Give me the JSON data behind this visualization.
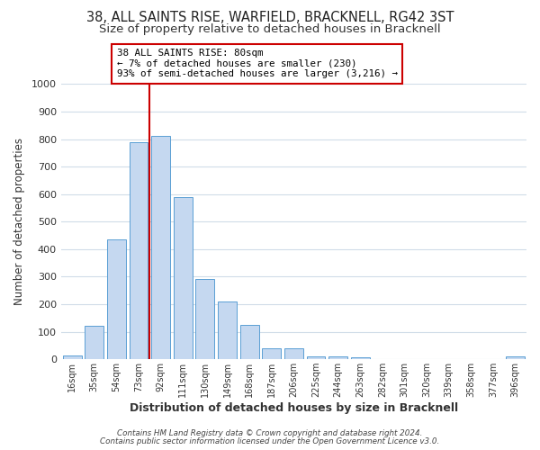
{
  "title": "38, ALL SAINTS RISE, WARFIELD, BRACKNELL, RG42 3ST",
  "subtitle": "Size of property relative to detached houses in Bracknell",
  "xlabel": "Distribution of detached houses by size in Bracknell",
  "ylabel": "Number of detached properties",
  "bar_labels": [
    "16sqm",
    "35sqm",
    "54sqm",
    "73sqm",
    "92sqm",
    "111sqm",
    "130sqm",
    "149sqm",
    "168sqm",
    "187sqm",
    "206sqm",
    "225sqm",
    "244sqm",
    "263sqm",
    "282sqm",
    "301sqm",
    "320sqm",
    "339sqm",
    "358sqm",
    "377sqm",
    "396sqm"
  ],
  "bar_values": [
    15,
    120,
    435,
    790,
    810,
    590,
    290,
    210,
    125,
    40,
    40,
    10,
    10,
    8,
    0,
    0,
    0,
    0,
    0,
    0,
    10
  ],
  "bar_color": "#c5d8f0",
  "bar_edge_color": "#5a9fd4",
  "vline_color": "#cc0000",
  "ylim": [
    0,
    1000
  ],
  "yticks": [
    0,
    100,
    200,
    300,
    400,
    500,
    600,
    700,
    800,
    900,
    1000
  ],
  "annotation_title": "38 ALL SAINTS RISE: 80sqm",
  "annotation_line1": "← 7% of detached houses are smaller (230)",
  "annotation_line2": "93% of semi-detached houses are larger (3,216) →",
  "annotation_box_color": "#ffffff",
  "annotation_box_edge": "#cc0000",
  "footer1": "Contains HM Land Registry data © Crown copyright and database right 2024.",
  "footer2": "Contains public sector information licensed under the Open Government Licence v3.0.",
  "background_color": "#ffffff",
  "grid_color": "#d0dce8",
  "title_fontsize": 10.5,
  "subtitle_fontsize": 9.5
}
